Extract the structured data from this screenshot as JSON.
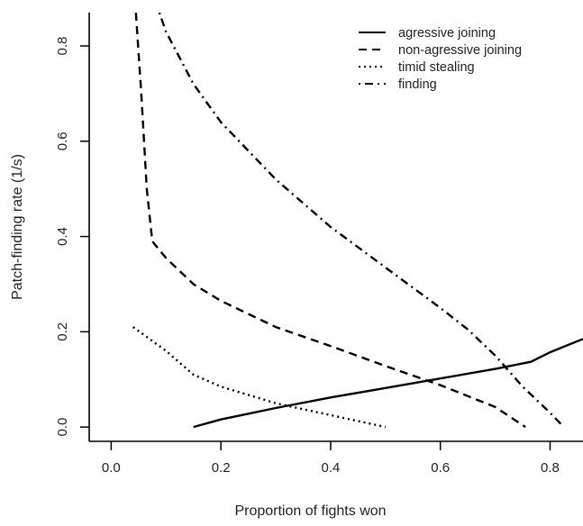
{
  "chart_data": {
    "type": "line",
    "title": "",
    "xlabel": "Proportion of fights won",
    "ylabel": "Patch-finding rate (1/s)",
    "xlim": [
      -0.04,
      0.86
    ],
    "ylim": [
      -0.03,
      0.87
    ],
    "x_ticks": [
      0.0,
      0.2,
      0.4,
      0.6,
      0.8
    ],
    "x_tick_labels": [
      "0.0",
      "0.2",
      "0.4",
      "0.6",
      "0.8"
    ],
    "y_ticks": [
      0.0,
      0.2,
      0.4,
      0.6,
      0.8
    ],
    "y_tick_labels": [
      "0.0",
      "0.2",
      "0.4",
      "0.6",
      "0.8"
    ],
    "grid": false,
    "legend_position": "top-right",
    "series": [
      {
        "name": "agressive joining",
        "style": "solid",
        "color": "#000000",
        "points": [
          [
            0.15,
            0.0
          ],
          [
            0.2,
            0.016
          ],
          [
            0.3,
            0.04
          ],
          [
            0.4,
            0.062
          ],
          [
            0.5,
            0.082
          ],
          [
            0.6,
            0.102
          ],
          [
            0.7,
            0.122
          ],
          [
            0.765,
            0.137
          ],
          [
            0.8,
            0.157
          ],
          [
            0.86,
            0.185
          ]
        ]
      },
      {
        "name": "non-agressive joining",
        "style": "dashed",
        "color": "#000000",
        "points": [
          [
            0.045,
            0.87
          ],
          [
            0.055,
            0.7
          ],
          [
            0.065,
            0.5
          ],
          [
            0.075,
            0.39
          ],
          [
            0.1,
            0.355
          ],
          [
            0.15,
            0.3
          ],
          [
            0.2,
            0.265
          ],
          [
            0.3,
            0.21
          ],
          [
            0.4,
            0.17
          ],
          [
            0.5,
            0.128
          ],
          [
            0.6,
            0.088
          ],
          [
            0.7,
            0.042
          ],
          [
            0.755,
            0.0
          ]
        ]
      },
      {
        "name": "timid stealing",
        "style": "dotted",
        "color": "#000000",
        "points": [
          [
            0.04,
            0.21
          ],
          [
            0.1,
            0.16
          ],
          [
            0.15,
            0.11
          ],
          [
            0.2,
            0.085
          ],
          [
            0.3,
            0.05
          ],
          [
            0.4,
            0.025
          ],
          [
            0.5,
            0.0
          ]
        ]
      },
      {
        "name": "finding",
        "style": "dashdot",
        "color": "#000000",
        "points": [
          [
            0.088,
            0.87
          ],
          [
            0.1,
            0.83
          ],
          [
            0.15,
            0.72
          ],
          [
            0.2,
            0.64
          ],
          [
            0.3,
            0.52
          ],
          [
            0.4,
            0.42
          ],
          [
            0.5,
            0.335
          ],
          [
            0.6,
            0.25
          ],
          [
            0.65,
            0.205
          ],
          [
            0.7,
            0.15
          ],
          [
            0.75,
            0.085
          ],
          [
            0.8,
            0.03
          ],
          [
            0.825,
            0.0
          ]
        ]
      }
    ]
  }
}
